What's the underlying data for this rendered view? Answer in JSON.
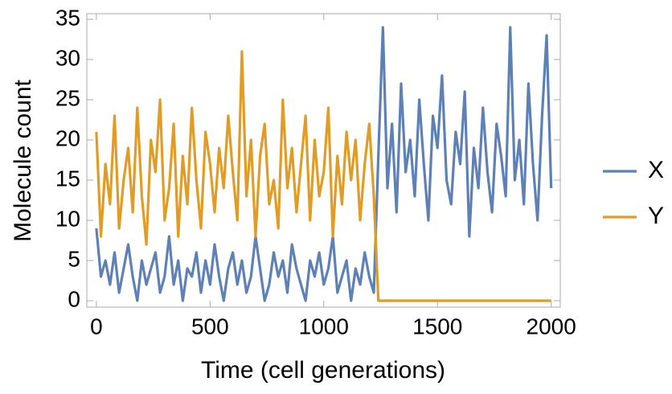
{
  "chart_data": {
    "type": "line",
    "xlabel": "Time (cell generations)",
    "ylabel": "Molecule count",
    "x": [
      0,
      20,
      40,
      60,
      80,
      100,
      120,
      140,
      160,
      180,
      200,
      220,
      240,
      260,
      280,
      300,
      320,
      340,
      360,
      380,
      400,
      420,
      440,
      460,
      480,
      500,
      520,
      540,
      560,
      580,
      600,
      620,
      640,
      660,
      680,
      700,
      720,
      740,
      760,
      780,
      800,
      820,
      840,
      860,
      880,
      900,
      920,
      940,
      960,
      980,
      1000,
      1020,
      1040,
      1060,
      1080,
      1100,
      1120,
      1140,
      1160,
      1180,
      1200,
      1220,
      1240,
      1260,
      1280,
      1300,
      1320,
      1340,
      1360,
      1380,
      1400,
      1420,
      1440,
      1460,
      1480,
      1500,
      1520,
      1540,
      1560,
      1580,
      1600,
      1620,
      1640,
      1660,
      1680,
      1700,
      1720,
      1740,
      1760,
      1780,
      1800,
      1820,
      1840,
      1860,
      1880,
      1900,
      1920,
      1940,
      1960,
      1980,
      2000
    ],
    "series": [
      {
        "name": "X",
        "color": "#5e81b5",
        "values": [
          9,
          3,
          5,
          2,
          6,
          1,
          4,
          7,
          3,
          0,
          5,
          2,
          4,
          6,
          1,
          3,
          8,
          2,
          5,
          0,
          4,
          3,
          6,
          1,
          5,
          2,
          7,
          3,
          0,
          4,
          6,
          2,
          5,
          1,
          3,
          8,
          4,
          0,
          2,
          6,
          3,
          5,
          1,
          7,
          4,
          2,
          0,
          5,
          3,
          6,
          2,
          4,
          8,
          1,
          3,
          5,
          0,
          4,
          2,
          6,
          3,
          1,
          18,
          34,
          14,
          22,
          11,
          27,
          16,
          20,
          13,
          25,
          17,
          10,
          23,
          19,
          28,
          15,
          12,
          21,
          17,
          26,
          8,
          19,
          14,
          24,
          16,
          11,
          22,
          18,
          13,
          34,
          15,
          20,
          12,
          27,
          17,
          10,
          23,
          33,
          14
        ]
      },
      {
        "name": "Y",
        "color": "#e19c24",
        "values": [
          21,
          8,
          17,
          12,
          23,
          9,
          15,
          19,
          11,
          24,
          13,
          7,
          20,
          16,
          25,
          10,
          14,
          22,
          8,
          18,
          12,
          24,
          15,
          9,
          21,
          17,
          11,
          19,
          14,
          23,
          16,
          10,
          31,
          13,
          20,
          8,
          18,
          22,
          12,
          15,
          9,
          25,
          14,
          19,
          11,
          17,
          23,
          10,
          20,
          13,
          16,
          24,
          8,
          18,
          12,
          21,
          15,
          20,
          10,
          17,
          22,
          13,
          0,
          0,
          0,
          0,
          0,
          0,
          0,
          0,
          0,
          0,
          0,
          0,
          0,
          0,
          0,
          0,
          0,
          0,
          0,
          0,
          0,
          0,
          0,
          0,
          0,
          0,
          0,
          0,
          0,
          0,
          0,
          0,
          0,
          0,
          0,
          0,
          0,
          0,
          0
        ]
      }
    ],
    "xlim": [
      -42,
      2040
    ],
    "ylim": [
      -0.8,
      35.7
    ],
    "xticks": [
      0,
      500,
      1000,
      1500,
      2000
    ],
    "yticks": [
      0,
      5,
      10,
      15,
      20,
      25,
      30,
      35
    ]
  }
}
